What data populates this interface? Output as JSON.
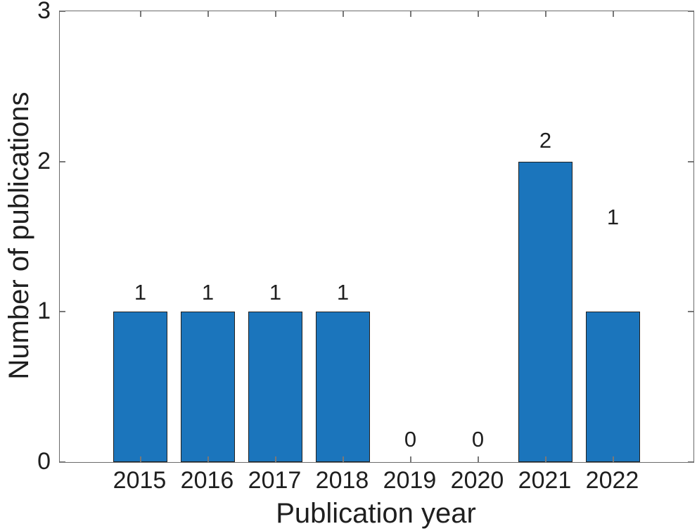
{
  "chart_data": {
    "type": "bar",
    "title": "",
    "xlabel": "Publication year",
    "ylabel": "Number of publications",
    "categories": [
      "2015",
      "2016",
      "2017",
      "2018",
      "2019",
      "2020",
      "2021",
      "2022"
    ],
    "values": [
      1,
      1,
      1,
      1,
      0,
      0,
      2,
      1
    ],
    "value_labels": [
      "1",
      "1",
      "1",
      "1",
      "0",
      "0",
      "2",
      "1"
    ],
    "value_label_y_data": [
      1.13,
      1.13,
      1.13,
      1.13,
      0.15,
      0.15,
      2.14,
      1.63
    ],
    "ylim": [
      0,
      3
    ],
    "yticks": [
      0,
      1,
      2,
      3
    ],
    "ytick_labels": [
      "0",
      "1",
      "2",
      "3"
    ],
    "bar_width_fraction": 0.8,
    "grid": false,
    "legend": "none",
    "box": true,
    "bar_color": "#1b75bc",
    "bar_edge_color": "#212121",
    "axis_color": "#6b6b6b",
    "tick_color": "#787878",
    "text_color": "#1f1f1f"
  }
}
